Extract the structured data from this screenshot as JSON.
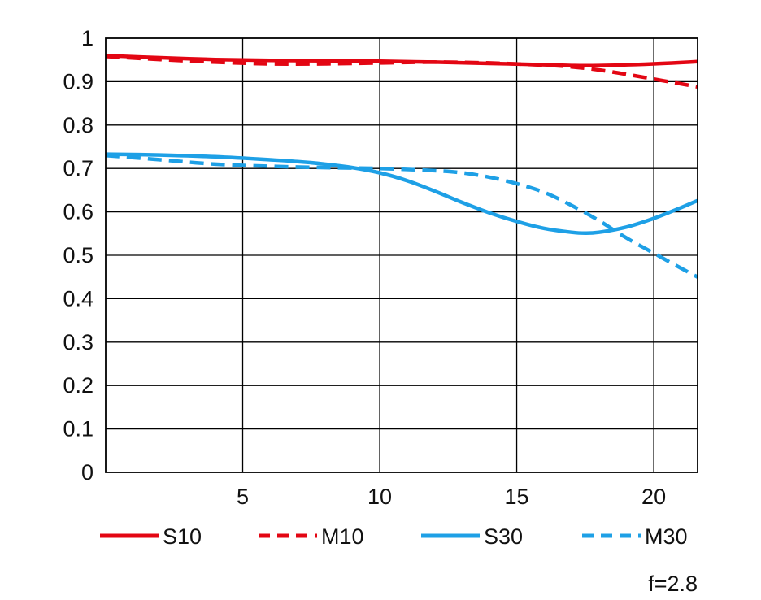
{
  "chart_data": {
    "type": "line",
    "title": "",
    "xlabel": "",
    "ylabel": "",
    "xlim": [
      0,
      21.6
    ],
    "ylim": [
      0,
      1
    ],
    "grid": true,
    "x_ticks": [
      "5",
      "10",
      "15",
      "20"
    ],
    "y_ticks": [
      "0",
      "0.1",
      "0.2",
      "0.3",
      "0.4",
      "0.5",
      "0.6",
      "0.7",
      "0.8",
      "0.9",
      "1"
    ],
    "legend_position": "bottom",
    "annotation": "f=2.8",
    "series": [
      {
        "name": "S10",
        "color": "#e30613",
        "style": "solid",
        "x": [
          0,
          2,
          4,
          6,
          8,
          10,
          12,
          14,
          16,
          17,
          18,
          20,
          21.6
        ],
        "y": [
          0.96,
          0.955,
          0.951,
          0.949,
          0.948,
          0.947,
          0.945,
          0.942,
          0.939,
          0.937,
          0.937,
          0.941,
          0.946
        ]
      },
      {
        "name": "M10",
        "color": "#e30613",
        "style": "dashed",
        "x": [
          0,
          2,
          4,
          6,
          8,
          10,
          12,
          14,
          16,
          17,
          18,
          19,
          20,
          21,
          21.6
        ],
        "y": [
          0.958,
          0.951,
          0.945,
          0.941,
          0.941,
          0.943,
          0.945,
          0.943,
          0.938,
          0.934,
          0.927,
          0.917,
          0.906,
          0.895,
          0.888
        ]
      },
      {
        "name": "S30",
        "color": "#1ea0e6",
        "style": "solid",
        "x": [
          0,
          2,
          4,
          6,
          7,
          8,
          9,
          10,
          11,
          12,
          13,
          14,
          15,
          16,
          17,
          17.5,
          18,
          19,
          20,
          21,
          21.6
        ],
        "y": [
          0.733,
          0.731,
          0.727,
          0.72,
          0.716,
          0.71,
          0.702,
          0.69,
          0.672,
          0.648,
          0.622,
          0.598,
          0.578,
          0.562,
          0.553,
          0.551,
          0.553,
          0.565,
          0.585,
          0.61,
          0.626
        ]
      },
      {
        "name": "M30",
        "color": "#1ea0e6",
        "style": "dashed",
        "x": [
          0,
          2,
          4,
          6,
          8,
          10,
          12,
          13,
          14,
          15,
          16,
          17,
          18,
          19,
          20,
          21,
          21.6
        ],
        "y": [
          0.73,
          0.72,
          0.71,
          0.705,
          0.702,
          0.7,
          0.695,
          0.69,
          0.68,
          0.665,
          0.645,
          0.615,
          0.58,
          0.54,
          0.505,
          0.47,
          0.45
        ]
      }
    ]
  }
}
